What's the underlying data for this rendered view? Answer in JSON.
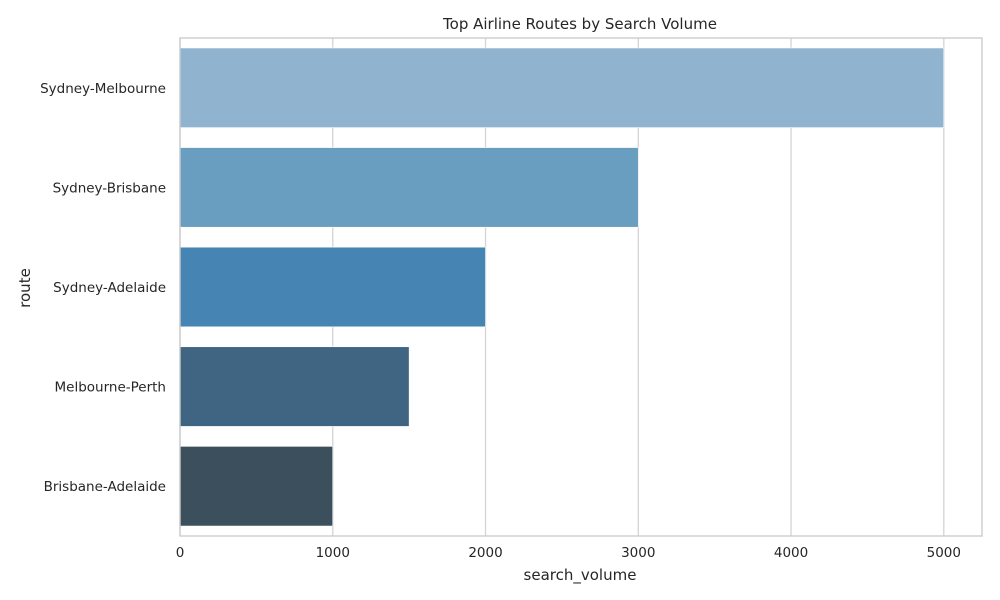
{
  "chart_data": {
    "type": "bar",
    "orientation": "horizontal",
    "title": "Top Airline Routes by Search Volume",
    "xlabel": "search_volume",
    "ylabel": "route",
    "xlim": [
      0,
      5250
    ],
    "xticks": [
      0,
      1000,
      2000,
      3000,
      4000,
      5000
    ],
    "grid": true,
    "categories": [
      "Sydney-Melbourne",
      "Sydney-Brisbane",
      "Sydney-Adelaide",
      "Melbourne-Perth",
      "Brisbane-Adelaide"
    ],
    "values": [
      5000,
      3000,
      2000,
      1500,
      1000
    ],
    "colors": [
      "#90b4cf",
      "#6a9ec0",
      "#4584b3",
      "#3f6583",
      "#3b4f5c"
    ],
    "background": "#ffffff",
    "grid_color": "#d4d4d4",
    "spine_color": "#cccccc"
  }
}
